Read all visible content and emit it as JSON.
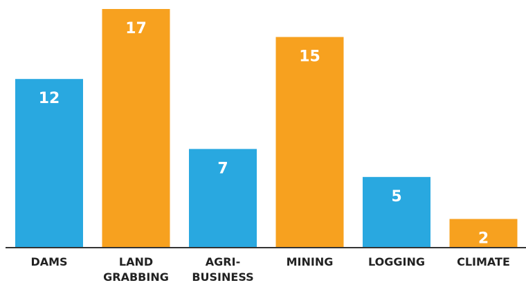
{
  "chart_data": {
    "type": "bar",
    "categories": [
      "DAMS",
      "LAND\nGRABBING",
      "AGRI-\nBUSINESS",
      "MINING",
      "LOGGING",
      "CLIMATE"
    ],
    "values": [
      12,
      17,
      7,
      15,
      5,
      2
    ],
    "colors": [
      "#29a8e0",
      "#f7a11f",
      "#29a8e0",
      "#f7a11f",
      "#29a8e0",
      "#f7a11f"
    ]
  }
}
